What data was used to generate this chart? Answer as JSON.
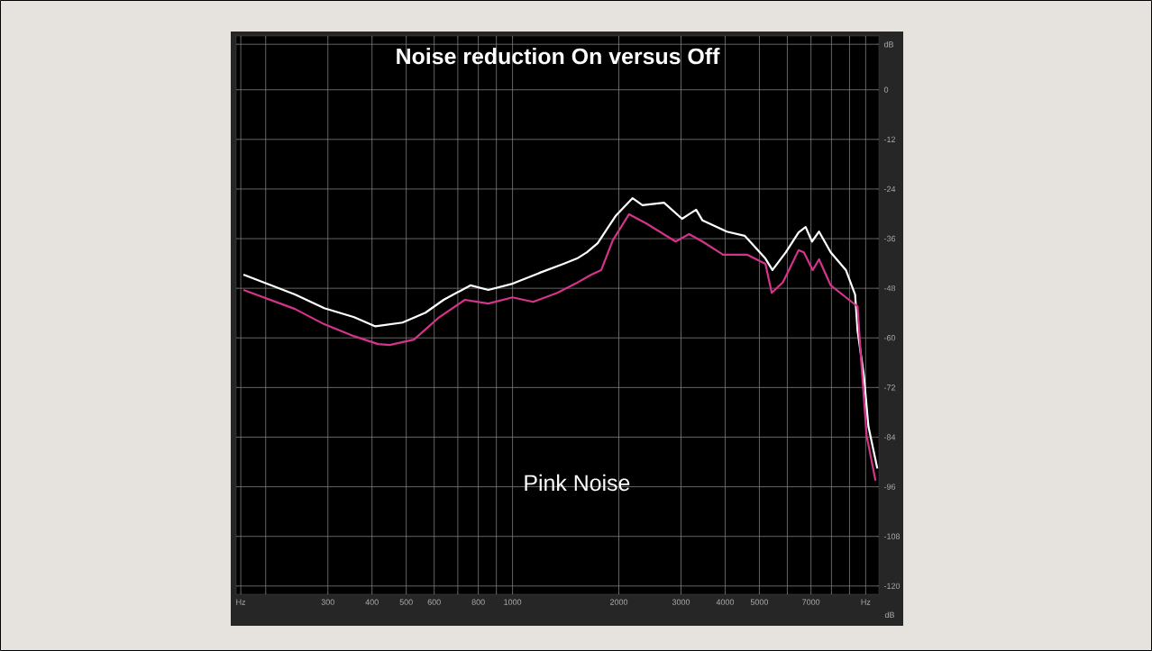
{
  "chart_data": {
    "type": "line",
    "title": "Noise reduction On versus Off",
    "annotations": [
      "Pink Noise"
    ],
    "series": [
      {
        "color": "#ffffff",
        "x": [
          173,
          242,
          293,
          356,
          409,
          488,
          567,
          638,
          760,
          854,
          1000,
          1191,
          1395,
          1523,
          1625,
          1742,
          1959,
          2188,
          2333,
          2685,
          3020,
          3311,
          3451,
          4045,
          4542,
          5200,
          5445,
          5943,
          6457,
          6761,
          7047,
          7379,
          7962,
          8790,
          9333,
          9484,
          9886,
          10180,
          10790
        ],
        "values": [
          -44.7,
          -49.5,
          -52.8,
          -55.0,
          -57.2,
          -56.3,
          -53.9,
          -50.8,
          -47.3,
          -48.4,
          -46.9,
          -44.3,
          -42.1,
          -40.8,
          -39.3,
          -37.1,
          -30.5,
          -26.2,
          -27.9,
          -27.3,
          -31.2,
          -29.0,
          -31.6,
          -34.3,
          -35.3,
          -40.8,
          -43.6,
          -39.3,
          -34.5,
          -33.2,
          -36.7,
          -34.3,
          -39.3,
          -43.6,
          -49.5,
          -58.3,
          -69.2,
          -81.4,
          -91.6
        ]
      },
      {
        "color": "#d6338a",
        "x": [
          173,
          242,
          293,
          356,
          416,
          449,
          526,
          616,
          733,
          854,
          1000,
          1144,
          1339,
          1506,
          1672,
          1783,
          1923,
          2138,
          2388,
          2897,
          3162,
          3451,
          3948,
          4624,
          5200,
          5420,
          5834,
          6457,
          6683,
          7080,
          7379,
          7962,
          8790,
          9484,
          9710,
          10060,
          10660
        ],
        "values": [
          -48.4,
          -53.0,
          -56.7,
          -59.6,
          -61.5,
          -61.7,
          -60.4,
          -55.2,
          -50.8,
          -51.7,
          -50.2,
          -51.3,
          -49.1,
          -46.9,
          -44.7,
          -43.6,
          -36.4,
          -30.1,
          -32.3,
          -36.7,
          -34.9,
          -36.7,
          -39.9,
          -39.9,
          -42.1,
          -49.1,
          -46.5,
          -38.8,
          -39.3,
          -43.6,
          -41.0,
          -47.3,
          -50.2,
          -52.4,
          -65.5,
          -83.6,
          -94.5
        ]
      }
    ],
    "log": "x",
    "xlim": [
      165,
      10900
    ],
    "ylim": [
      -122,
      13
    ],
    "xticks": [
      {
        "value": 170,
        "label": "Hz"
      },
      {
        "value": 200,
        "label": null
      },
      300,
      400,
      500,
      600,
      {
        "value": 700,
        "label": null
      },
      800,
      {
        "value": 900,
        "label": null
      },
      1000,
      2000,
      3000,
      4000,
      5000,
      {
        "value": 6000,
        "label": null
      },
      7000,
      {
        "value": 8000,
        "label": null
      },
      {
        "value": 9000,
        "label": null
      },
      {
        "value": 10000,
        "label": "Hz"
      }
    ],
    "yticks": [
      {
        "value": 11,
        "label": "dB"
      },
      0,
      -12,
      -24,
      -36,
      -48,
      -60,
      -72,
      -84,
      -96,
      -108,
      -120
    ],
    "ylabel": "dB",
    "grid": true,
    "marker": "none",
    "line_style": "solid"
  }
}
